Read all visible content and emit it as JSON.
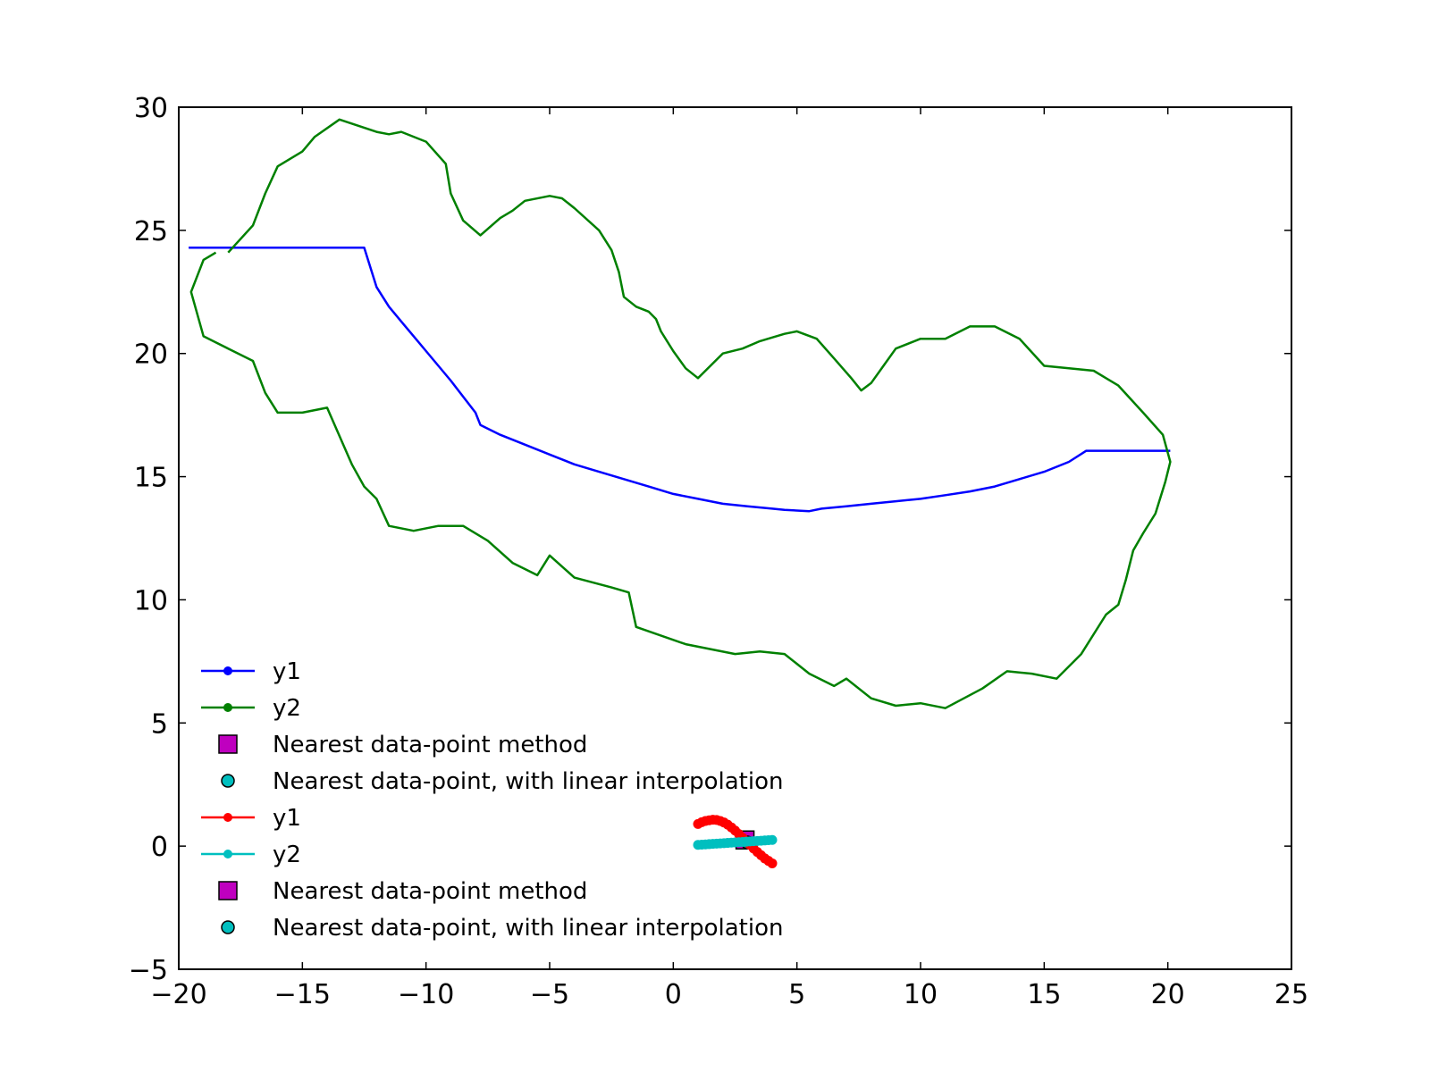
{
  "chart_data": {
    "type": "line",
    "title": "",
    "xlabel": "",
    "ylabel": "",
    "xlim": [
      -20,
      25
    ],
    "ylim": [
      -5,
      30
    ],
    "x_ticks": [
      -20,
      -15,
      -10,
      -5,
      0,
      5,
      10,
      15,
      20,
      25
    ],
    "x_tick_labels": [
      "−20",
      "−15",
      "−10",
      "−5",
      "0",
      "5",
      "10",
      "15",
      "20",
      "25"
    ],
    "y_ticks": [
      -5,
      0,
      5,
      10,
      15,
      20,
      25,
      30
    ],
    "y_tick_labels": [
      "−5",
      "0",
      "5",
      "10",
      "15",
      "20",
      "25",
      "30"
    ],
    "grid": false,
    "legend_placement": "lower-left",
    "series": [
      {
        "name": "y1",
        "color": "#0000ff",
        "marker": "line",
        "x": [
          -19.6,
          -12.5,
          -12.0,
          -11.5,
          -11.0,
          -10.0,
          -9.0,
          -8.0,
          -7.8,
          -7.0,
          -6.5,
          -5.0,
          -4.0,
          -3.0,
          -2.0,
          -1.0,
          0.0,
          1.0,
          2.0,
          3.0,
          4.0,
          4.5,
          5.5,
          6.0,
          7.0,
          8.0,
          9.0,
          10.0,
          11.0,
          12.0,
          13.0,
          14.0,
          15.0,
          16.0,
          16.7,
          17.0,
          20.1
        ],
        "y": [
          24.3,
          24.3,
          22.7,
          21.9,
          21.3,
          20.1,
          18.9,
          17.6,
          17.1,
          16.7,
          16.5,
          15.9,
          15.5,
          15.2,
          14.9,
          14.6,
          14.3,
          14.1,
          13.9,
          13.8,
          13.7,
          13.65,
          13.6,
          13.7,
          13.8,
          13.9,
          14.0,
          14.1,
          14.25,
          14.4,
          14.6,
          14.9,
          15.2,
          15.6,
          16.05,
          16.05,
          16.05
        ]
      },
      {
        "name": "y2",
        "color": "#008000",
        "marker": "line",
        "x": [
          -18.0,
          -17.0,
          -16.5,
          -16.0,
          -15.0,
          -14.5,
          -13.5,
          -12.0,
          -11.5,
          -11.0,
          -10.0,
          -9.2,
          -9.0,
          -8.5,
          -7.8,
          -7.0,
          -6.5,
          -6.0,
          -5.0,
          -4.5,
          -4.0,
          -3.0,
          -2.5,
          -2.2,
          -2.0,
          -1.5,
          -1.0,
          -0.7,
          -0.5,
          0.0,
          0.5,
          1.0,
          2.0,
          2.8,
          3.5,
          4.5,
          5.0,
          5.8,
          6.5,
          7.2,
          7.6,
          8.0,
          8.5,
          9.0,
          10.0,
          11.0,
          12.0,
          13.0,
          14.0,
          15.0,
          16.0,
          17.0,
          17.5,
          18.0,
          19.0,
          19.8,
          20.1,
          19.9,
          19.5,
          19.0,
          18.6,
          18.3,
          18.0,
          17.5,
          16.5,
          15.5,
          14.5,
          13.5,
          12.5,
          11.0,
          10.0,
          9.0,
          8.0,
          7.0,
          6.5,
          5.5,
          4.5,
          3.5,
          2.5,
          1.5,
          0.5,
          -1.5,
          -1.8,
          -2.5,
          -4.0,
          -5.0,
          -5.5,
          -6.5,
          -7.5,
          -8.5,
          -9.5,
          -10.5,
          -11.5,
          -12.0,
          -12.5,
          -13.0,
          -14.0,
          -15.0,
          -16.0,
          -16.5,
          -17.0,
          -18.0,
          -19.0,
          -19.5,
          -19.0,
          -18.5
        ],
        "y": [
          24.1,
          25.2,
          26.5,
          27.6,
          28.2,
          28.8,
          29.5,
          29.0,
          28.9,
          29.0,
          28.6,
          27.7,
          26.5,
          25.4,
          24.8,
          25.5,
          25.8,
          26.2,
          26.4,
          26.3,
          25.9,
          25.0,
          24.2,
          23.3,
          22.3,
          21.9,
          21.7,
          21.4,
          20.9,
          20.1,
          19.4,
          19.0,
          20.0,
          20.2,
          20.5,
          20.8,
          20.9,
          20.6,
          19.8,
          19.0,
          18.5,
          18.8,
          19.5,
          20.2,
          20.6,
          20.6,
          21.1,
          21.1,
          20.6,
          19.5,
          19.4,
          19.3,
          19.0,
          18.7,
          17.6,
          16.7,
          15.6,
          14.8,
          13.5,
          12.7,
          12.0,
          10.8,
          9.8,
          9.4,
          7.8,
          6.8,
          7.0,
          7.1,
          6.4,
          5.6,
          5.8,
          5.7,
          6.0,
          6.8,
          6.5,
          7.0,
          7.8,
          7.9,
          7.8,
          8.0,
          8.2,
          8.9,
          10.3,
          10.5,
          10.9,
          11.8,
          11.0,
          11.5,
          12.4,
          13.0,
          13.0,
          12.8,
          13.0,
          14.1,
          14.6,
          15.5,
          17.8,
          17.6,
          17.6,
          18.4,
          19.7,
          20.2,
          20.7,
          22.5,
          23.8,
          24.1
        ]
      },
      {
        "name": "Nearest data-point method",
        "color": "#bf00bf",
        "marker": "square",
        "x": [
          2.9
        ],
        "y": [
          0.25
        ]
      },
      {
        "name": "Nearest data-point, with linear interpolation",
        "color": "#00bfbf",
        "marker": "circle",
        "x": [
          3.0
        ],
        "y": [
          0.15
        ]
      },
      {
        "name": "y1",
        "color": "#ff0000",
        "marker": "dot-line",
        "x": [
          1.0,
          1.15,
          1.3,
          1.45,
          1.6,
          1.75,
          1.9,
          2.05,
          2.2,
          2.35,
          2.5,
          2.65,
          2.8,
          2.95,
          3.1,
          3.25,
          3.4,
          3.55,
          3.7,
          3.85,
          4.0
        ],
        "y": [
          0.9,
          0.97,
          1.02,
          1.05,
          1.07,
          1.06,
          1.02,
          0.96,
          0.87,
          0.76,
          0.63,
          0.49,
          0.34,
          0.2,
          0.05,
          -0.1,
          -0.24,
          -0.37,
          -0.5,
          -0.6,
          -0.7
        ]
      },
      {
        "name": "y2",
        "color": "#00bfbf",
        "marker": "dot-line",
        "x": [
          1.0,
          1.15,
          1.3,
          1.45,
          1.6,
          1.75,
          1.9,
          2.05,
          2.2,
          2.35,
          2.5,
          2.65,
          2.8,
          2.95,
          3.1,
          3.25,
          3.4,
          3.55,
          3.7,
          3.85,
          4.0
        ],
        "y": [
          0.05,
          0.06,
          0.07,
          0.08,
          0.09,
          0.1,
          0.11,
          0.12,
          0.13,
          0.14,
          0.15,
          0.16,
          0.17,
          0.18,
          0.19,
          0.2,
          0.21,
          0.22,
          0.23,
          0.24,
          0.25
        ]
      }
    ],
    "legend": [
      {
        "label": "y1",
        "color": "#0000ff",
        "marker": "dot-line"
      },
      {
        "label": "y2",
        "color": "#008000",
        "marker": "dot-line"
      },
      {
        "label": "Nearest data-point method",
        "color": "#bf00bf",
        "marker": "square"
      },
      {
        "label": "Nearest data-point, with linear interpolation",
        "color": "#00bfbf",
        "marker": "circle"
      },
      {
        "label": "y1",
        "color": "#ff0000",
        "marker": "dot-line"
      },
      {
        "label": "y2",
        "color": "#00bfbf",
        "marker": "dot-line"
      },
      {
        "label": "Nearest data-point method",
        "color": "#bf00bf",
        "marker": "square"
      },
      {
        "label": "Nearest data-point, with linear interpolation",
        "color": "#00bfbf",
        "marker": "circle"
      }
    ]
  }
}
